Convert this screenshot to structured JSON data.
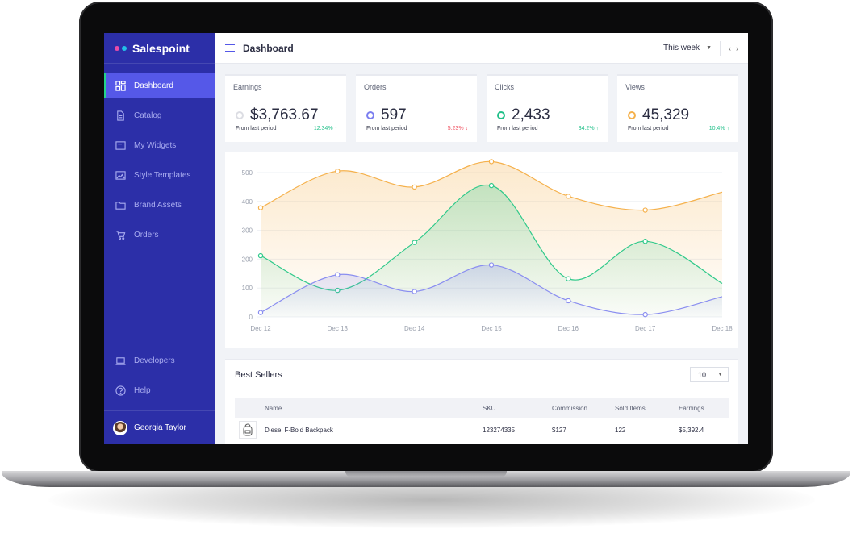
{
  "app": {
    "name": "Salespoint",
    "dot_colors": [
      "#e94ba8",
      "#22c0e8"
    ]
  },
  "sidebar": {
    "items": [
      {
        "label": "Dashboard",
        "icon": "dashboard-grid-icon",
        "active": true
      },
      {
        "label": "Catalog",
        "icon": "document-icon"
      },
      {
        "label": "My Widgets",
        "icon": "widget-icon"
      },
      {
        "label": "Style Templates",
        "icon": "image-icon"
      },
      {
        "label": "Brand Assets",
        "icon": "folder-icon"
      },
      {
        "label": "Orders",
        "icon": "cart-icon"
      }
    ],
    "bottom_items": [
      {
        "label": "Developers",
        "icon": "laptop-icon"
      },
      {
        "label": "Help",
        "icon": "help-icon"
      }
    ],
    "user": {
      "name": "Georgia Taylor"
    }
  },
  "header": {
    "title": "Dashboard",
    "period": "This week",
    "prev": "‹",
    "next": "›"
  },
  "stats": [
    {
      "label": "Earnings",
      "value": "$3,763.67",
      "foot": "From last period",
      "change": "12.34% ↑",
      "direction": "up",
      "color": "#dcdde3"
    },
    {
      "label": "Orders",
      "value": "597",
      "foot": "From last period",
      "change": "5.23% ↓",
      "direction": "down",
      "color": "#7c7ff0"
    },
    {
      "label": "Clicks",
      "value": "2,433",
      "foot": "From last period",
      "change": "34.2% ↑",
      "direction": "up",
      "color": "#22c08a"
    },
    {
      "label": "Views",
      "value": "45,329",
      "foot": "From last period",
      "change": "10.4% ↑",
      "direction": "up",
      "color": "#f5b14c"
    }
  ],
  "chart_data": {
    "type": "area",
    "categories": [
      "Dec 12",
      "Dec 13",
      "Dec 14",
      "Dec 15",
      "Dec 16",
      "Dec 17",
      "Dec 18"
    ],
    "ylim": [
      0,
      500
    ],
    "y_ticks": [
      0,
      100,
      200,
      300,
      400,
      500
    ],
    "grid": true,
    "series": [
      {
        "values": [
          378,
          505,
          450,
          538,
          418,
          370,
          432
        ],
        "color": "#f5b14c"
      },
      {
        "values": [
          212,
          92,
          258,
          455,
          132,
          262,
          116
        ],
        "color": "#2fc98a"
      },
      {
        "values": [
          15,
          146,
          88,
          180,
          56,
          8,
          70
        ],
        "color": "#8a8ef0"
      }
    ]
  },
  "best_sellers": {
    "title": "Best Sellers",
    "per_page": "10",
    "columns": [
      "Name",
      "SKU",
      "Commission",
      "Sold Items",
      "Earnings"
    ],
    "rows": [
      {
        "name": "Diesel F-Bold Backpack",
        "sku": "123274335",
        "commission": "$127",
        "sold": "122",
        "earnings": "$5,392.4"
      }
    ]
  }
}
